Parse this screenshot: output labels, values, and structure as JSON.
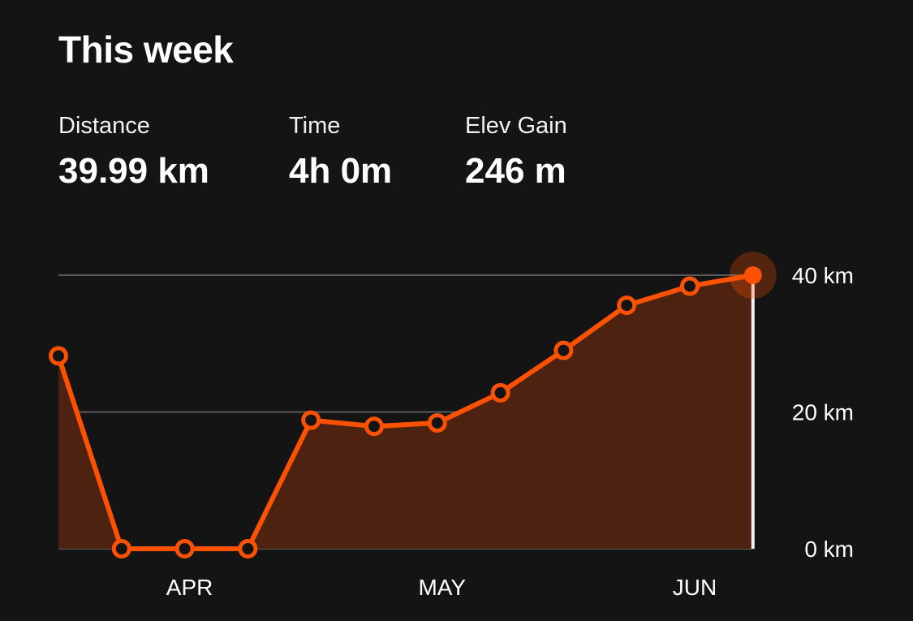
{
  "header": {
    "title": "This week"
  },
  "stats": [
    {
      "label": "Distance",
      "value": "39.99 km"
    },
    {
      "label": "Time",
      "value": "4h 0m"
    },
    {
      "label": "Elev Gain",
      "value": "246 m"
    }
  ],
  "colors": {
    "accent": "#fc5200",
    "area_fill": "#4e2210",
    "gridline": "#5a5a5a",
    "background": "#141414"
  },
  "chart_data": {
    "type": "area",
    "title": "",
    "xlabel": "",
    "ylabel": "",
    "ylim": [
      0,
      40
    ],
    "y_ticks": [
      {
        "value": 0,
        "label": "0 km"
      },
      {
        "value": 20,
        "label": "20 km"
      },
      {
        "value": 40,
        "label": "40 km"
      }
    ],
    "x_labels": [
      {
        "index": 2,
        "label": "APR"
      },
      {
        "index": 6,
        "label": "MAY"
      },
      {
        "index": 10,
        "label": "JUN"
      }
    ],
    "grid": true,
    "series": [
      {
        "values": [
          28.2,
          0,
          0,
          0,
          18.8,
          17.9,
          18.4,
          22.8,
          29.0,
          35.6,
          38.4,
          39.99
        ],
        "highlight_index": 11
      }
    ]
  }
}
